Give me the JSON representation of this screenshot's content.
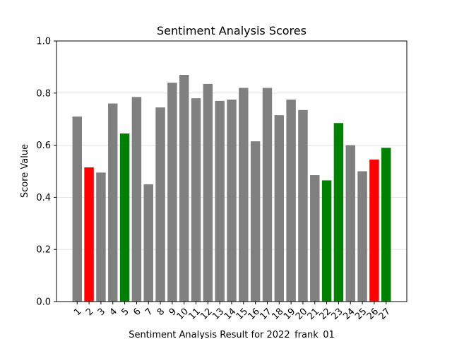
{
  "chart_data": {
    "type": "bar",
    "title": "Sentiment Analysis Scores",
    "xlabel": "Sentiment Analysis Result for 2022_frank_01",
    "ylabel": "Score Value",
    "ylim": [
      0,
      1.0
    ],
    "yticks": [
      "0.0",
      "0.2",
      "0.4",
      "0.6",
      "0.8",
      "1.0"
    ],
    "grid": "y",
    "categories": [
      "1",
      "2",
      "3",
      "4",
      "5",
      "6",
      "7",
      "8",
      "9",
      "10",
      "11",
      "12",
      "13",
      "14",
      "15",
      "16",
      "17",
      "18",
      "19",
      "20",
      "21",
      "22",
      "23",
      "24",
      "25",
      "26",
      "27"
    ],
    "values": [
      0.71,
      0.515,
      0.495,
      0.76,
      0.645,
      0.785,
      0.45,
      0.745,
      0.84,
      0.87,
      0.78,
      0.835,
      0.77,
      0.775,
      0.82,
      0.615,
      0.82,
      0.715,
      0.775,
      0.735,
      0.485,
      0.465,
      0.685,
      0.6,
      0.5,
      0.545,
      0.59
    ],
    "bar_colors": [
      "#808080",
      "#ff0000",
      "#808080",
      "#808080",
      "#008000",
      "#808080",
      "#808080",
      "#808080",
      "#808080",
      "#808080",
      "#808080",
      "#808080",
      "#808080",
      "#808080",
      "#808080",
      "#808080",
      "#808080",
      "#808080",
      "#808080",
      "#808080",
      "#808080",
      "#008000",
      "#008000",
      "#808080",
      "#808080",
      "#ff0000",
      "#008000"
    ]
  }
}
